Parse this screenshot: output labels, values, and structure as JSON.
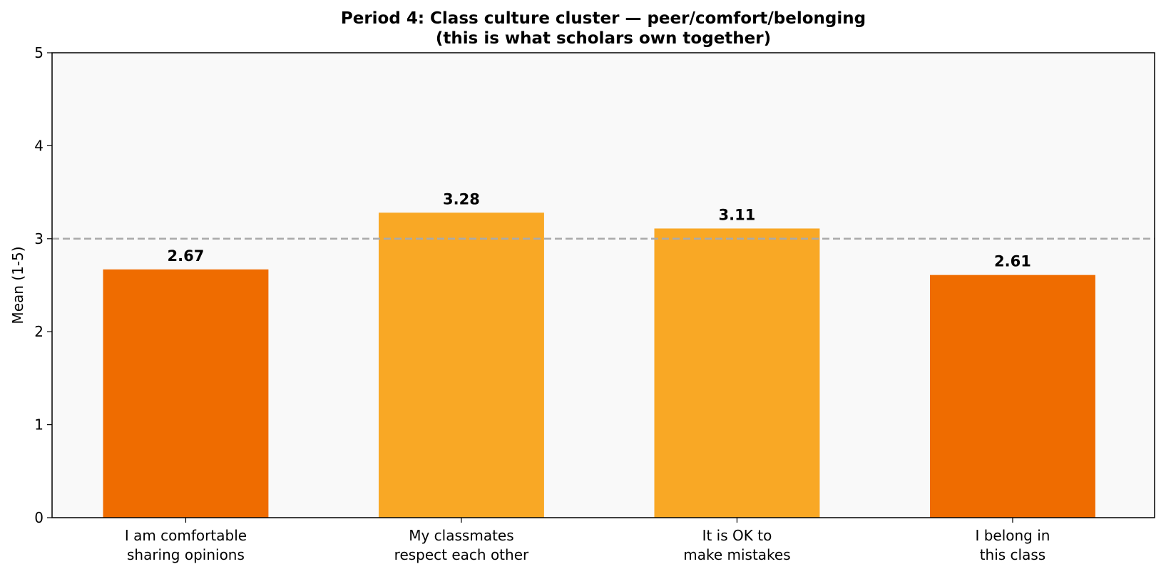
{
  "chart_data": {
    "type": "bar",
    "title": "Period 4: Class culture cluster — peer/comfort/belonging",
    "subtitle": "(this is what scholars own together)",
    "y_label": "Mean (1-5)",
    "categories": [
      "I am comfortable\nsharing opinions",
      "My classmates\nrespect each other",
      "It is OK to\nmake mistakes",
      "I belong in\nthis class"
    ],
    "values": [
      2.67,
      3.28,
      3.11,
      2.61
    ],
    "colors": [
      "#ef6c00",
      "#f9a825",
      "#f9a825",
      "#ef6c00"
    ],
    "ylim": [
      0,
      5
    ],
    "yticks": [
      0,
      1,
      2,
      3,
      4,
      5
    ],
    "reference_line": 3,
    "grid": false
  }
}
